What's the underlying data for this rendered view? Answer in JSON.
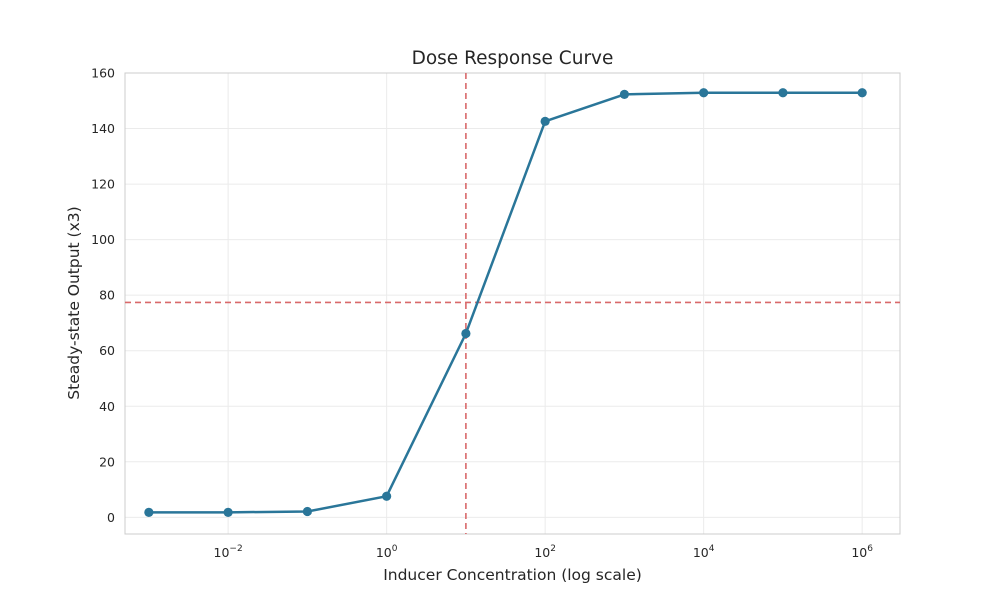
{
  "chart_data": {
    "type": "line",
    "title": "Dose Response Curve",
    "xlabel": "Inducer Concentration (log scale)",
    "ylabel": "Steady-state Output (x3)",
    "x_scale": "log",
    "xlim": [
      0.0005,
      3000000
    ],
    "ylim": [
      -6,
      160
    ],
    "x_ticks": [
      {
        "value": 0.01,
        "base": "10",
        "exp": "−2"
      },
      {
        "value": 1,
        "base": "10",
        "exp": "0"
      },
      {
        "value": 100,
        "base": "10",
        "exp": "2"
      },
      {
        "value": 10000,
        "base": "10",
        "exp": "4"
      },
      {
        "value": 1000000,
        "base": "10",
        "exp": "6"
      }
    ],
    "y_ticks": [
      0,
      20,
      40,
      60,
      80,
      100,
      120,
      140,
      160
    ],
    "grid": true,
    "series": [
      {
        "color": "#2a7699",
        "marker": "circle",
        "x": [
          0.001,
          0.01,
          0.1,
          1,
          10,
          100,
          1000,
          10000,
          100000,
          1000000
        ],
        "y": [
          1.8,
          1.8,
          2.1,
          7.6,
          66.2,
          142.6,
          152.3,
          152.9,
          152.9,
          152.9
        ]
      }
    ],
    "reference_lines": [
      {
        "orientation": "vertical",
        "x": 10,
        "color": "#d9696a",
        "style": "dashed"
      },
      {
        "orientation": "horizontal",
        "y": 77.4,
        "color": "#d9696a",
        "style": "dashed"
      }
    ]
  }
}
